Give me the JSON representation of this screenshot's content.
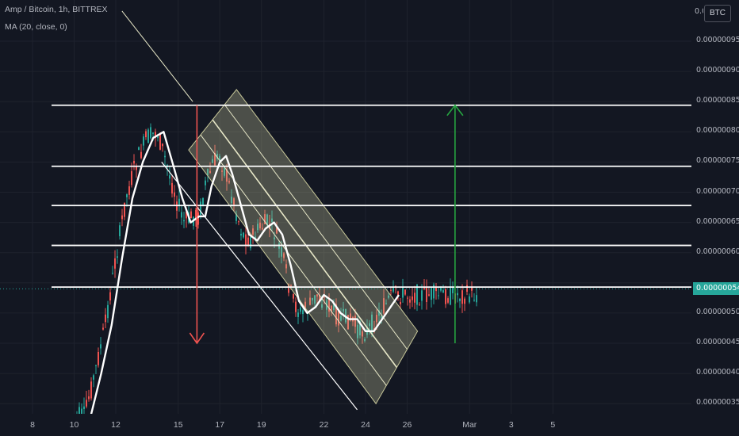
{
  "legend": {
    "title": "Amp / Bitcoin, 1h, BITTREX",
    "indicator": "MA (20, close, 0)"
  },
  "price_axis": {
    "currency_badge": "BTC",
    "cut_label": "0.0",
    "labels": [
      "0.00000095",
      "0.00000090",
      "0.00000085",
      "0.00000080",
      "0.00000075",
      "0.00000070",
      "0.00000065",
      "0.00000060",
      "0.00000050",
      "0.00000045",
      "0.00000040",
      "0.00000035"
    ],
    "last_price": "0.00000054"
  },
  "time_axis": {
    "labels": [
      "8",
      "10",
      "12",
      "15",
      "17",
      "19",
      "22",
      "24",
      "26",
      "Mar",
      "3",
      "5"
    ]
  },
  "colors": {
    "background": "#131722",
    "up_candle": "#26a69a",
    "down_candle": "#ef5350",
    "moving_average": "#ffffff",
    "horizontal_levels": "#ffffff",
    "channel_fill": "#c8c89a",
    "down_arrow": "#ef5350",
    "up_arrow": "#26a641",
    "last_price_tag": "#26a69a"
  },
  "chart_data": {
    "type": "candlestick",
    "symbol": "Amp / Bitcoin",
    "interval": "1h",
    "exchange": "BITTREX",
    "ylim": [
      3.3e-07,
      9.95e-07
    ],
    "x_ticks": [
      "8",
      "10",
      "12",
      "15",
      "17",
      "19",
      "22",
      "24",
      "26",
      "Mar",
      "3",
      "5"
    ],
    "last_price": 5.4e-07,
    "horizontal_levels": [
      8.44e-07,
      7.43e-07,
      6.78e-07,
      6.12e-07,
      5.43e-07
    ],
    "moving_average": {
      "name": "MA (20, close, 0)",
      "points": [
        {
          "t": 10.8,
          "v": 3.3e-07
        },
        {
          "t": 11.3,
          "v": 4e-07
        },
        {
          "t": 11.8,
          "v": 4.8e-07
        },
        {
          "t": 12.3,
          "v": 5.9e-07
        },
        {
          "t": 12.8,
          "v": 6.9e-07
        },
        {
          "t": 13.3,
          "v": 7.5e-07
        },
        {
          "t": 13.8,
          "v": 7.9e-07
        },
        {
          "t": 14.3,
          "v": 8e-07
        },
        {
          "t": 14.8,
          "v": 7.4e-07
        },
        {
          "t": 15.2,
          "v": 6.9e-07
        },
        {
          "t": 15.6,
          "v": 6.5e-07
        },
        {
          "t": 16.0,
          "v": 6.6e-07
        },
        {
          "t": 16.3,
          "v": 6.6e-07
        },
        {
          "t": 16.6,
          "v": 7.1e-07
        },
        {
          "t": 17.0,
          "v": 7.5e-07
        },
        {
          "t": 17.3,
          "v": 7.6e-07
        },
        {
          "t": 17.6,
          "v": 7.3e-07
        },
        {
          "t": 18.0,
          "v": 6.8e-07
        },
        {
          "t": 18.4,
          "v": 6.3e-07
        },
        {
          "t": 18.8,
          "v": 6.2e-07
        },
        {
          "t": 19.2,
          "v": 6.4e-07
        },
        {
          "t": 19.6,
          "v": 6.5e-07
        },
        {
          "t": 20.0,
          "v": 6.3e-07
        },
        {
          "t": 20.4,
          "v": 5.8e-07
        },
        {
          "t": 20.8,
          "v": 5.2e-07
        },
        {
          "t": 21.2,
          "v": 5e-07
        },
        {
          "t": 21.6,
          "v": 5.1e-07
        },
        {
          "t": 22.0,
          "v": 5.3e-07
        },
        {
          "t": 22.4,
          "v": 5.2e-07
        },
        {
          "t": 22.8,
          "v": 5e-07
        },
        {
          "t": 23.2,
          "v": 4.9e-07
        },
        {
          "t": 23.6,
          "v": 4.9e-07
        },
        {
          "t": 24.0,
          "v": 4.7e-07
        },
        {
          "t": 24.4,
          "v": 4.7e-07
        },
        {
          "t": 24.8,
          "v": 4.9e-07
        },
        {
          "t": 25.2,
          "v": 5.1e-07
        },
        {
          "t": 25.6,
          "v": 5.3e-07
        }
      ]
    },
    "drawings": {
      "descending_trendline": {
        "from": {
          "t": 12.3,
          "v": 1e-06
        },
        "to": {
          "t": 15.7,
          "v": 8.5e-07
        }
      },
      "channel_lower_line": {
        "from": {
          "t": 14.2,
          "v": 7.5e-07
        },
        "to": {
          "t": 23.6,
          "v": 3.4e-07
        }
      },
      "channel_band": {
        "top_start": {
          "t": 17.8,
          "v": 8.7e-07
        },
        "top_end": {
          "t": 26.5,
          "v": 4.7e-07
        },
        "bottom_start": {
          "t": 15.5,
          "v": 7.7e-07
        },
        "bottom_end": {
          "t": 24.5,
          "v": 3.5e-07
        },
        "inner_lines": 3
      },
      "down_arrow": {
        "t": 15.9,
        "from": 8.44e-07,
        "to": 4.5e-07
      },
      "up_arrow": {
        "t": 28.3,
        "from": 4.5e-07,
        "to": 8.44e-07
      }
    }
  }
}
